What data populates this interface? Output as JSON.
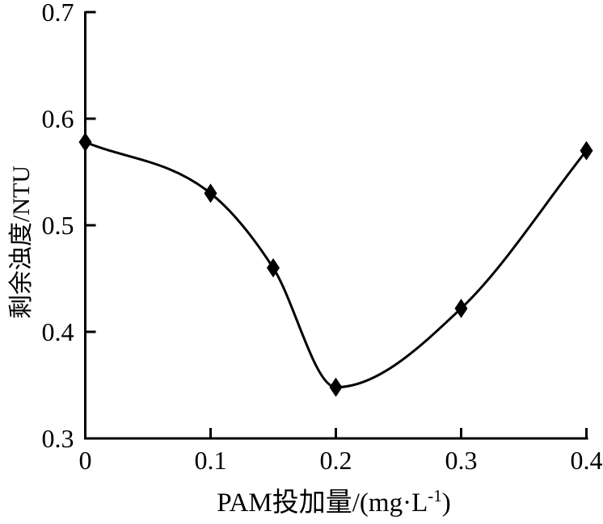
{
  "figure": {
    "background_color": "#ffffff",
    "ink_color": "#000000"
  },
  "chart_data": {
    "type": "line",
    "title": "",
    "x": [
      0,
      0.1,
      0.15,
      0.2,
      0.3,
      0.4
    ],
    "values": [
      0.578,
      0.53,
      0.46,
      0.348,
      0.422,
      0.57
    ],
    "xlabel": "PAM投加量/(mg·L⁻¹)",
    "xlabel_parts": {
      "prefix": "PAM投加量/(mg·L",
      "superscript": "-1",
      "suffix": ")"
    },
    "ylabel": "剩余浊度/NTU",
    "xlim": [
      0,
      0.4
    ],
    "ylim": [
      0.3,
      0.7
    ],
    "xtick_values": [
      0,
      0.1,
      0.2,
      0.3,
      0.4
    ],
    "xtick_labels": [
      "0",
      "0.1",
      "0.2",
      "0.3",
      "0.4"
    ],
    "ytick_values": [
      0.3,
      0.4,
      0.5,
      0.6,
      0.7
    ],
    "ytick_labels": [
      "0.3",
      "0.4",
      "0.5",
      "0.6",
      "0.7"
    ],
    "grid": false,
    "legend_position": "none",
    "marker": "diamond",
    "line_color": "#000000",
    "marker_color": "#000000",
    "axis_color": "#000000"
  }
}
